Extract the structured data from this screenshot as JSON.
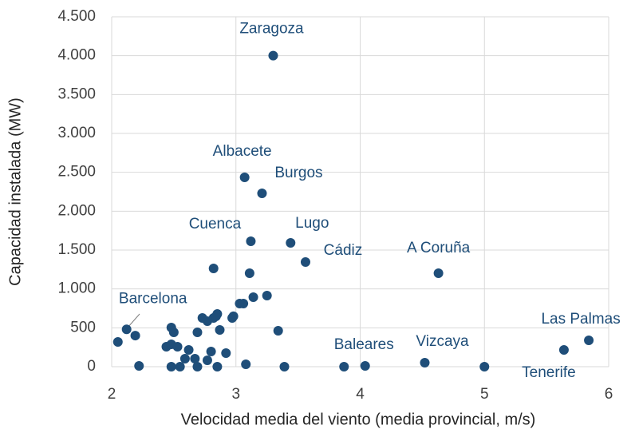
{
  "chart_data": {
    "type": "scatter",
    "xlabel": "Velocidad media del viento (media provincial,  m/s)",
    "ylabel": "Capacidad instalada (MW)",
    "xlim": [
      2,
      6
    ],
    "xticks": [
      2,
      3,
      4,
      5,
      6
    ],
    "ylim": [
      0,
      4500
    ],
    "yticks": [
      0,
      500,
      {
        "value": 1000,
        "label": "1.000"
      },
      {
        "value": 1500,
        "label": "1.500"
      },
      {
        "value": 2000,
        "label": "2.000"
      },
      {
        "value": 2500,
        "label": "2.500"
      },
      {
        "value": 3000,
        "label": "3.000"
      },
      {
        "value": 3500,
        "label": "3.500"
      },
      {
        "value": 4000,
        "label": "4.000"
      },
      {
        "value": 4500,
        "label": "4.500"
      }
    ],
    "grid": true,
    "color": "#1f4e79",
    "x": [
      3.3,
      3.07,
      3.21,
      3.12,
      3.44,
      3.56,
      4.63,
      2.12,
      5.84,
      5.64,
      3.87,
      4.52,
      2.05,
      2.19,
      2.22,
      2.44,
      2.48,
      2.5,
      2.48,
      2.53,
      2.48,
      2.55,
      2.59,
      2.62,
      2.69,
      2.67,
      2.69,
      2.73,
      2.77,
      2.8,
      2.77,
      2.82,
      2.82,
      2.85,
      2.84,
      2.87,
      2.85,
      2.92,
      2.98,
      2.97,
      3.03,
      3.06,
      3.08,
      3.11,
      3.14,
      3.25,
      3.34,
      3.39,
      4.04,
      5.0
    ],
    "y": [
      4000,
      2435,
      2230,
      1613,
      1593,
      1346,
      1202,
      480,
      339,
      216,
      0,
      51,
      318,
      400,
      10,
      257,
      503,
      442,
      288,
      257,
      0,
      0,
      103,
      216,
      442,
      103,
      0,
      627,
      586,
      195,
      82,
      1264,
      627,
      678,
      648,
      473,
      0,
      175,
      648,
      627,
      812,
      812,
      31,
      1202,
      894,
      914,
      462,
      0,
      10,
      0
    ],
    "point_labels": [
      "Zaragoza",
      "Albacete",
      "Burgos",
      "Cuenca",
      "Lugo",
      "Cádiz",
      "A Coruña",
      "Barcelona",
      "Las Palmas",
      "Tenerife",
      "Baleares",
      "Vizcaya",
      null,
      null,
      null,
      null,
      null,
      null,
      null,
      null,
      null,
      null,
      null,
      null,
      null,
      null,
      null,
      null,
      null,
      null,
      null,
      null,
      null,
      null,
      null,
      null,
      null,
      null,
      null,
      null,
      null,
      null,
      null,
      null,
      null,
      null,
      null,
      null,
      null,
      null
    ]
  }
}
